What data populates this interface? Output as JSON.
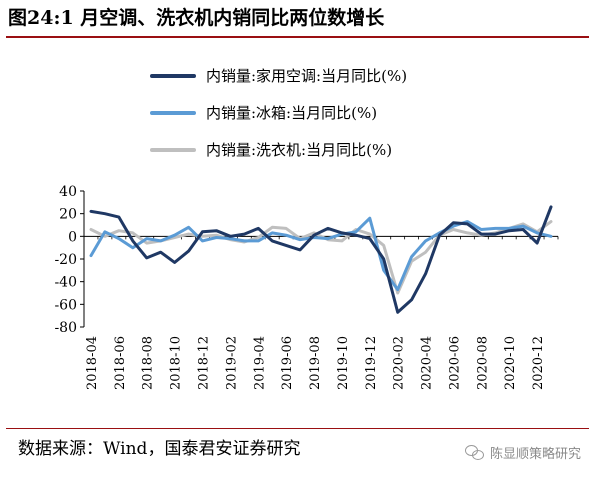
{
  "figure": {
    "title": "图24:1 月空调、洗衣机内销同比两位数增长",
    "source": "数据来源：Wind，国泰君安证券研究",
    "watermark": "陈显顺策略研究"
  },
  "chart_data": {
    "type": "line",
    "title": "",
    "xlabel": "",
    "ylabel": "",
    "ylim": [
      -80,
      40
    ],
    "yticks": [
      40,
      20,
      0,
      -20,
      -40,
      -60,
      -80
    ],
    "grid": false,
    "legend_position": "top-center",
    "x": [
      "2018-04",
      "2018-05",
      "2018-06",
      "2018-07",
      "2018-08",
      "2018-09",
      "2018-10",
      "2018-11",
      "2018-12",
      "2019-01",
      "2019-02",
      "2019-03",
      "2019-04",
      "2019-05",
      "2019-06",
      "2019-07",
      "2019-08",
      "2019-09",
      "2019-10",
      "2019-11",
      "2019-12",
      "2020-01",
      "2020-02",
      "2020-03",
      "2020-04",
      "2020-05",
      "2020-06",
      "2020-07",
      "2020-08",
      "2020-09",
      "2020-10",
      "2020-11",
      "2020-12",
      "2021-01"
    ],
    "xtick_labels": [
      "2018-04",
      "2018-06",
      "2018-08",
      "2018-10",
      "2018-12",
      "2019-02",
      "2019-04",
      "2019-06",
      "2019-08",
      "2019-10",
      "2019-12",
      "2020-02",
      "2020-04",
      "2020-06",
      "2020-08",
      "2020-10",
      "2020-12"
    ],
    "series": [
      {
        "name": "内销量:家用空调:当月同比(%)",
        "color": "#1f3864",
        "values": [
          22,
          20,
          17,
          -4,
          -19,
          -14,
          -23,
          -13,
          4,
          5,
          0,
          2,
          7,
          -4,
          -8,
          -12,
          1,
          7,
          3,
          1,
          -2,
          -20,
          -67,
          -56,
          -33,
          1,
          12,
          11,
          2,
          2,
          5,
          6,
          -6,
          26
        ]
      },
      {
        "name": "内销量:冰箱:当月同比(%)",
        "color": "#5b9bd5",
        "values": [
          -17,
          4,
          -2,
          -10,
          -2,
          -4,
          1,
          8,
          -4,
          -1,
          -2,
          -4,
          -4,
          3,
          1,
          -3,
          -1,
          -2,
          2,
          4,
          16,
          -30,
          -47,
          -18,
          -4,
          3,
          9,
          13,
          6,
          7,
          7,
          9,
          3,
          0
        ]
      },
      {
        "name": "内销量:洗衣机:当月同比(%)",
        "color": "#bfbfbf",
        "values": [
          6,
          0,
          5,
          3,
          -6,
          -4,
          -1,
          2,
          0,
          1,
          -3,
          -5,
          -1,
          8,
          7,
          -2,
          3,
          -3,
          -4,
          6,
          2,
          -8,
          -50,
          -22,
          -14,
          1,
          6,
          3,
          1,
          3,
          7,
          11,
          4,
          13
        ]
      }
    ]
  }
}
